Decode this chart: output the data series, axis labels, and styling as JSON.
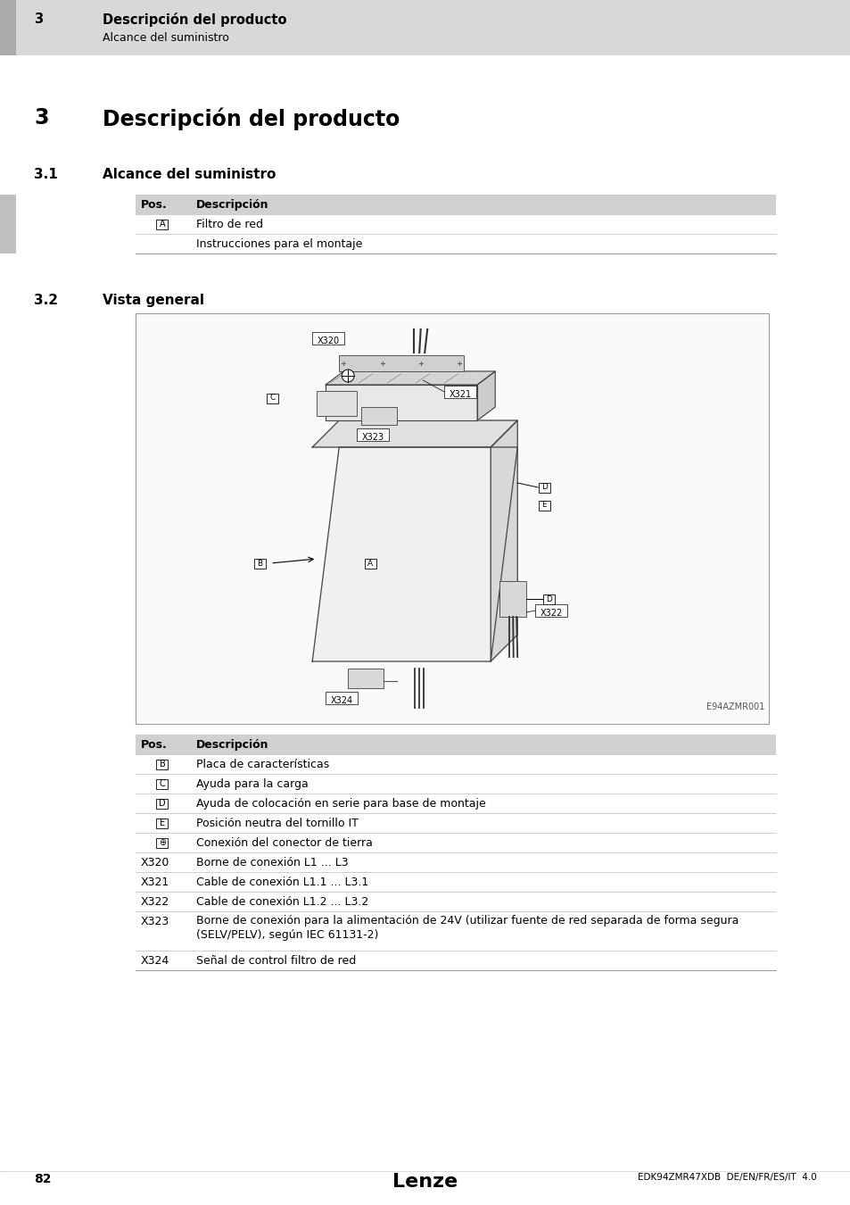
{
  "page_bg": "#ffffff",
  "header_bg": "#d8d8d8",
  "table_header_bg": "#d0d0d0",
  "header_title": "Descripción del producto",
  "header_subtitle": "Alcance del suministro",
  "header_number": "3",
  "section_title": "Descripción del producto",
  "section_number": "3",
  "section31_number": "3.1",
  "section31_title": "Alcance del suministro",
  "section32_number": "3.2",
  "section32_title": "Vista general",
  "table1_headers": [
    "Pos.",
    "Descripción"
  ],
  "table1_rows": [
    [
      "A",
      "Filtro de red"
    ],
    [
      "",
      "Instrucciones para el montaje"
    ]
  ],
  "table2_headers": [
    "Pos.",
    "Descripción"
  ],
  "table2_rows": [
    [
      "B",
      "Placa de características"
    ],
    [
      "C",
      "Ayuda para la carga"
    ],
    [
      "D",
      "Ayuda de colocación en serie para base de montaje"
    ],
    [
      "E",
      "Posición neutra del tornillo IT"
    ],
    [
      "⊕",
      "Conexión del conector de tierra"
    ],
    [
      "X320",
      "Borne de conexión L1 ... L3"
    ],
    [
      "X321",
      "Cable de conexión L1.1 ... L3.1"
    ],
    [
      "X322",
      "Cable de conexión L1.2 ... L3.2"
    ],
    [
      "X323",
      "Borne de conexión para la alimentación de 24V (utilizar fuente de red separada de forma segura\n(SELV/PELV), según IEC 61131-2)"
    ],
    [
      "X324",
      "Señal de control filtro de red"
    ]
  ],
  "footer_page": "82",
  "footer_brand": "Lenze",
  "footer_doc": "EDK94ZMR47XDB  DE/EN/FR/ES/IT  4.0",
  "image_label": "E94AZMR001"
}
